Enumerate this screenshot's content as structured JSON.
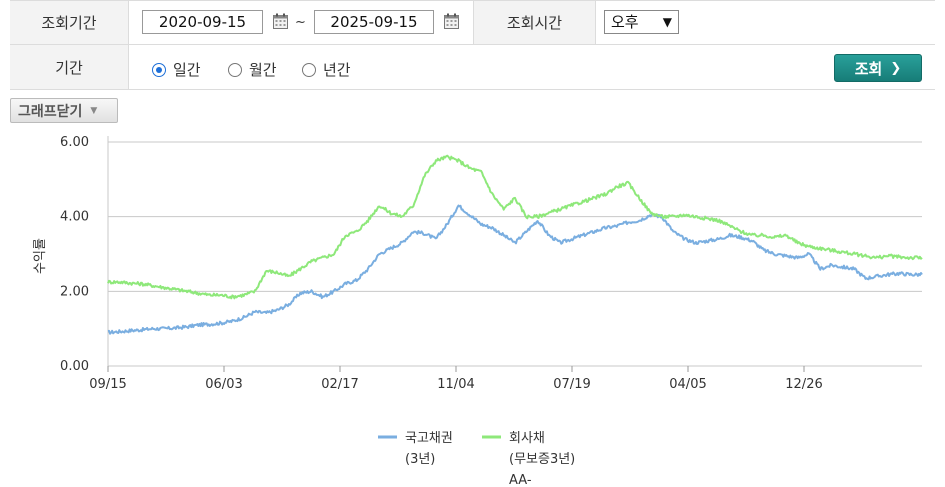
{
  "form": {
    "period_label": "조회기간",
    "start_date": "2020-09-15",
    "tilde": "~",
    "end_date": "2025-09-15",
    "time_label": "조회시간",
    "time_value": "오후",
    "interval_label": "기간",
    "intervals": [
      {
        "label": "일간",
        "checked": true
      },
      {
        "label": "월간",
        "checked": false
      },
      {
        "label": "년간",
        "checked": false
      }
    ],
    "search_label": "조회",
    "accent_color": "#1d8c86"
  },
  "graph_toggle": {
    "label": "그래프닫기"
  },
  "chart_data": {
    "type": "line",
    "title": "",
    "xlabel": "",
    "ylabel": "수익률",
    "ylim": [
      0,
      6
    ],
    "yticks": [
      "6.00",
      "4.00",
      "2.00",
      "0.00"
    ],
    "xticks": [
      "09/15",
      "06/03",
      "02/17",
      "11/04",
      "07/19",
      "04/05",
      "12/26"
    ],
    "grid": true,
    "legend_position": "bottom",
    "series": [
      {
        "name_lines": [
          "국고채권",
          "(3년)"
        ],
        "color": "#7aaee0",
        "values": [
          0.9,
          0.92,
          0.95,
          0.97,
          1.0,
          1.0,
          1.02,
          1.05,
          1.1,
          1.12,
          1.15,
          1.2,
          1.3,
          1.45,
          1.42,
          1.5,
          1.65,
          1.95,
          2.0,
          1.85,
          2.0,
          2.2,
          2.3,
          2.6,
          3.0,
          3.15,
          3.3,
          3.6,
          3.55,
          3.4,
          3.8,
          4.3,
          4.05,
          3.8,
          3.7,
          3.5,
          3.3,
          3.6,
          3.9,
          3.5,
          3.3,
          3.4,
          3.5,
          3.6,
          3.7,
          3.75,
          3.85,
          3.9,
          4.05,
          4.0,
          3.6,
          3.4,
          3.3,
          3.35,
          3.4,
          3.5,
          3.45,
          3.35,
          3.1,
          3.0,
          2.95,
          2.9,
          3.0,
          2.6,
          2.7,
          2.65,
          2.6,
          2.35,
          2.4,
          2.45,
          2.48,
          2.45,
          2.45
        ]
      },
      {
        "name_lines": [
          "회사채",
          "(무보증3년)",
          "AA-"
        ],
        "color": "#8ee87a",
        "values": [
          2.25,
          2.25,
          2.22,
          2.2,
          2.15,
          2.1,
          2.05,
          2.0,
          1.95,
          1.9,
          1.9,
          1.85,
          1.9,
          2.0,
          2.55,
          2.5,
          2.4,
          2.6,
          2.8,
          2.9,
          3.0,
          3.5,
          3.6,
          3.9,
          4.3,
          4.1,
          4.0,
          4.3,
          5.1,
          5.5,
          5.6,
          5.5,
          5.3,
          5.2,
          4.6,
          4.2,
          4.5,
          4.0,
          4.0,
          4.1,
          4.2,
          4.3,
          4.4,
          4.5,
          4.6,
          4.8,
          4.9,
          4.5,
          4.1,
          4.0,
          4.0,
          4.05,
          4.0,
          3.95,
          3.9,
          3.75,
          3.6,
          3.5,
          3.5,
          3.45,
          3.5,
          3.3,
          3.2,
          3.15,
          3.1,
          3.05,
          3.0,
          2.95,
          2.9,
          2.95,
          2.92,
          2.9,
          2.9
        ]
      }
    ]
  }
}
